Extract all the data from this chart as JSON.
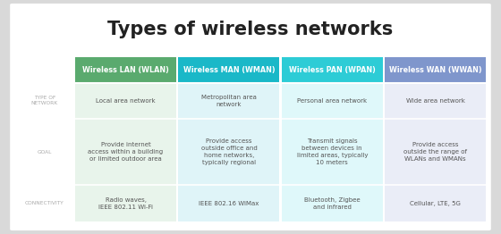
{
  "title": "Types of wireless networks",
  "background_color": "#d9d9d9",
  "card_background": "#ffffff",
  "columns": [
    {
      "header": "Wireless LAN (WLAN)",
      "header_bg": "#5aaa6e",
      "cell_bg": "#e8f4eb"
    },
    {
      "header": "Wireless MAN (WMAN)",
      "header_bg": "#1ab8c8",
      "cell_bg": "#dff4f8"
    },
    {
      "header": "Wireless PAN (WPAN)",
      "header_bg": "#2dccd6",
      "cell_bg": "#dff8fa"
    },
    {
      "header": "Wireless WAN (WWAN)",
      "header_bg": "#7f96cc",
      "cell_bg": "#eaedf7"
    }
  ],
  "row_labels": [
    "TYPE OF\nNETWORK",
    "GOAL",
    "CONNECTIVITY"
  ],
  "row_label_color": "#aaaaaa",
  "rows": [
    [
      "Local area network",
      "Metropolitan area\nnetwork",
      "Personal area network",
      "Wide area network"
    ],
    [
      "Provide internet\naccess within a building\nor limited outdoor area",
      "Provide access\noutside office and\nhome networks,\ntypically regional",
      "Transmit signals\nbetween devices in\nlimited areas, typically\n10 meters",
      "Provide access\noutside the range of\nWLANs and WMANs"
    ],
    [
      "Radio waves,\nIEEE 802.11 Wi-Fi",
      "IEEE 802.16 WiMax",
      "Bluetooth, Zigbee\nand infrared",
      "Cellular, LTE, 5G"
    ]
  ],
  "header_text_color": "#ffffff",
  "cell_text_color": "#555555",
  "title_color": "#222222",
  "title_fontsize": 15,
  "header_fontsize": 5.8,
  "cell_fontsize": 5.0,
  "label_fontsize": 4.2
}
